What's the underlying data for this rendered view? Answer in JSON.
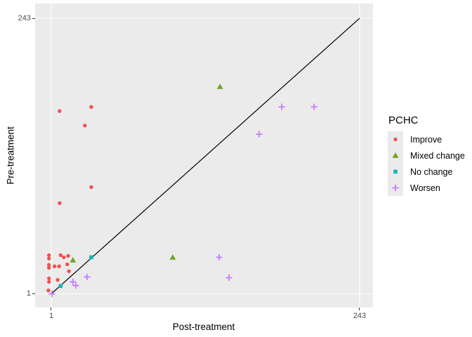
{
  "figure": {
    "background": "#FFFFFF",
    "panel_background": "#EBEBEB",
    "gridline_color": "#FFFFFF",
    "axis_text_color": "#4D4D4D",
    "tick_mark_color": "#333333"
  },
  "chart_data": {
    "type": "scatter",
    "title": "",
    "xlabel": "Post-treatment",
    "ylabel": "Pre-treatment",
    "grid": "major-only",
    "x_scale": {
      "type": "log",
      "base": 3,
      "domain": [
        1,
        243
      ],
      "ticks": [
        1,
        243
      ],
      "tick_labels": [
        "1",
        "243"
      ]
    },
    "y_scale": {
      "type": "log",
      "base": 3,
      "domain": [
        1,
        243
      ],
      "ticks": [
        1,
        243
      ],
      "tick_labels": [
        "1",
        "243"
      ]
    },
    "legend": {
      "title": "PCHC",
      "position": "right"
    },
    "identity_line": {
      "from": [
        1,
        1
      ],
      "to": [
        243,
        243
      ],
      "color": "#000000",
      "description": "y = x reference line"
    },
    "series": [
      {
        "name": "Improve",
        "shape": "circle",
        "color": "#F0524F",
        "points": [
          [
            1.16,
            38.2
          ],
          [
            2.04,
            41.5
          ],
          [
            1.82,
            28.6
          ],
          [
            2.04,
            8.4
          ],
          [
            1.16,
            6.1
          ],
          [
            0.96,
            2.16
          ],
          [
            0.96,
            2.02
          ],
          [
            1.18,
            2.16
          ],
          [
            1.25,
            2.07
          ],
          [
            1.35,
            2.13
          ],
          [
            0.96,
            1.78
          ],
          [
            0.96,
            1.68
          ],
          [
            1.06,
            1.73
          ],
          [
            1.15,
            1.73
          ],
          [
            1.33,
            1.8
          ],
          [
            1.37,
            1.57
          ],
          [
            0.96,
            1.36
          ],
          [
            0.96,
            1.27
          ],
          [
            1.12,
            1.32
          ],
          [
            0.95,
            1.07
          ]
        ]
      },
      {
        "name": "Mixed change",
        "shape": "triangle",
        "color": "#71A524",
        "points": [
          [
            20.2,
            62.2
          ],
          [
            8.7,
            2.07
          ],
          [
            1.47,
            1.96
          ]
        ]
      },
      {
        "name": "No change",
        "shape": "square",
        "color": "#17B3B7",
        "points": [
          [
            2.04,
            2.07
          ],
          [
            1.18,
            1.17
          ]
        ]
      },
      {
        "name": "Worsen",
        "shape": "plus",
        "color": "#C77CFF",
        "points": [
          [
            60.7,
            41.5
          ],
          [
            108,
            41.5
          ],
          [
            40.6,
            24.1
          ],
          [
            19.9,
            2.07
          ],
          [
            23.7,
            1.38
          ],
          [
            1.89,
            1.4
          ],
          [
            1.47,
            1.27
          ],
          [
            1.55,
            1.18
          ],
          [
            1.01,
            1.0
          ]
        ]
      }
    ]
  }
}
